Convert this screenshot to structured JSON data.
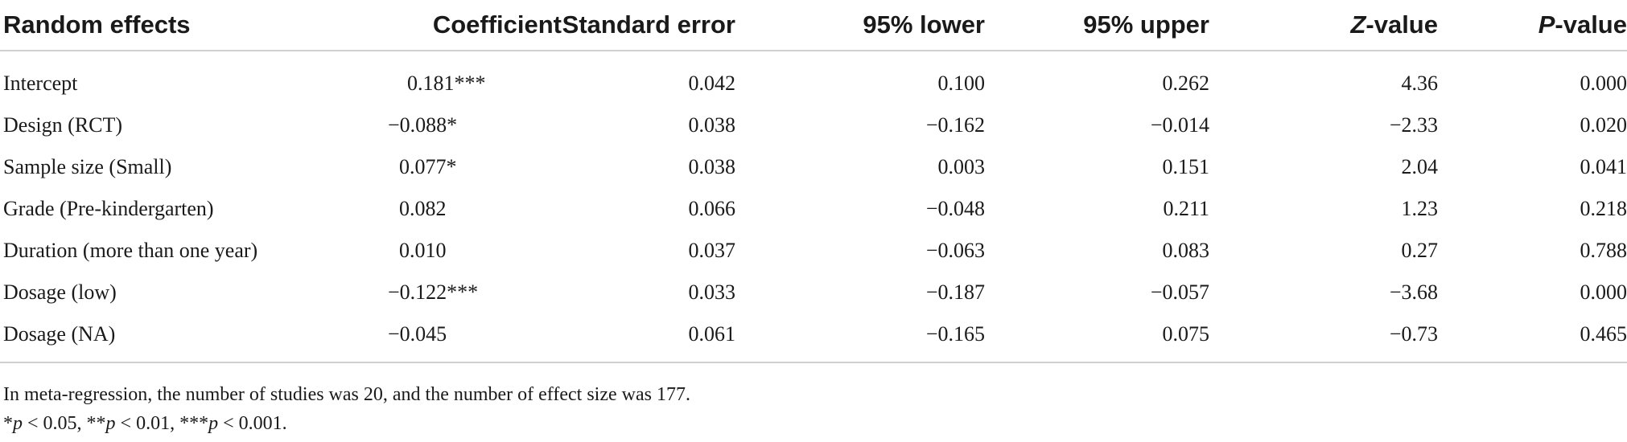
{
  "table": {
    "headers": [
      "Random effects",
      "Coefficient",
      "Standard error",
      "95% lower",
      "95% upper",
      "Z-value",
      "P-value"
    ],
    "header_parts": {
      "z_italic": "Z",
      "z_rest": "-value",
      "p_italic": "P",
      "p_rest": "-value"
    },
    "rows": [
      {
        "label": "Intercept",
        "coef": "0.181***",
        "se": "0.042",
        "lower": "0.100",
        "upper": "0.262",
        "z": "4.36",
        "p": "0.000"
      },
      {
        "label": "Design (RCT)",
        "coef": "−0.088*",
        "se": "0.038",
        "lower": "−0.162",
        "upper": "−0.014",
        "z": "−2.33",
        "p": "0.020"
      },
      {
        "label": "Sample size (Small)",
        "coef": "0.077*",
        "se": "0.038",
        "lower": "0.003",
        "upper": "0.151",
        "z": "2.04",
        "p": "0.041"
      },
      {
        "label": "Grade (Pre-kindergarten)",
        "coef": "0.082",
        "se": "0.066",
        "lower": "−0.048",
        "upper": "0.211",
        "z": "1.23",
        "p": "0.218"
      },
      {
        "label": "Duration (more than one year)",
        "coef": "0.010",
        "se": "0.037",
        "lower": "−0.063",
        "upper": "0.083",
        "z": "0.27",
        "p": "0.788"
      },
      {
        "label": "Dosage (low)",
        "coef": "−0.122***",
        "se": "0.033",
        "lower": "−0.187",
        "upper": "−0.057",
        "z": "−3.68",
        "p": "0.000"
      },
      {
        "label": "Dosage (NA)",
        "coef": "−0.045",
        "se": "0.061",
        "lower": "−0.165",
        "upper": "0.075",
        "z": "−0.73",
        "p": "0.465"
      }
    ]
  },
  "footnotes": {
    "note": "In meta-regression, the number of studies was 20, and the number of effect size was 177.",
    "sig": {
      "s1": "*",
      "p1": "p",
      "t1": " < 0.05, ",
      "s2": "**",
      "p2": "p",
      "t2": " < 0.01, ",
      "s3": "***",
      "p3": "p",
      "t3": " < 0.001."
    }
  }
}
